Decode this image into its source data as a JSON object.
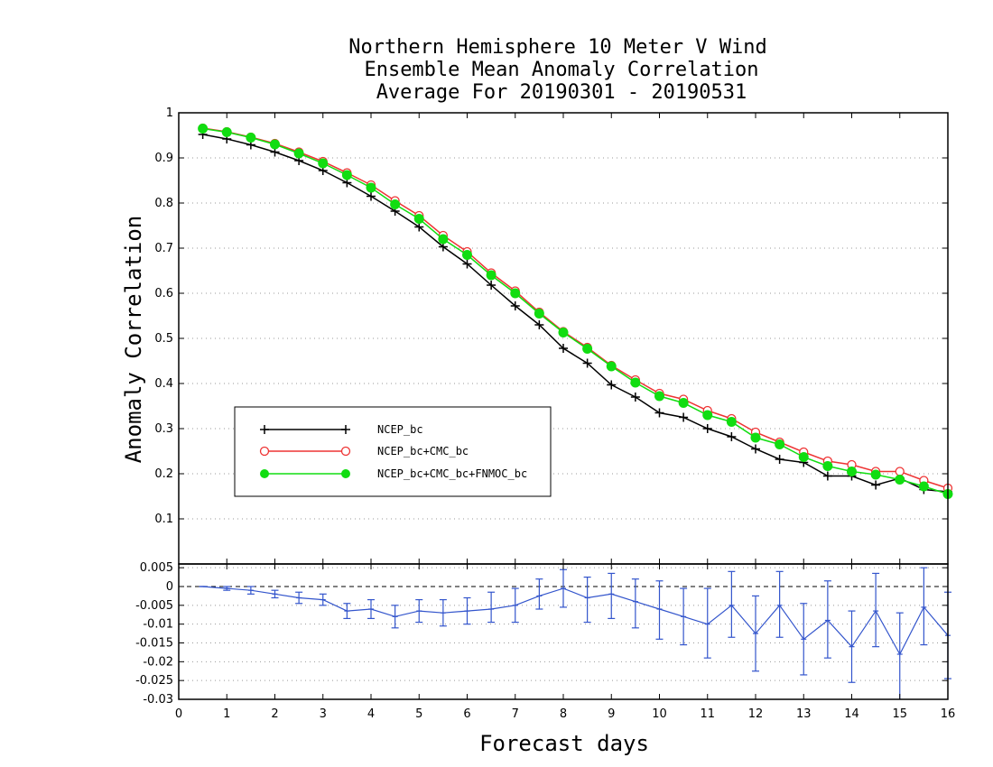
{
  "chart_data": {
    "type": "line",
    "title": {
      "line1": "Northern Hemisphere 10 Meter V Wind",
      "line2": "Ensemble Mean Anomaly Correlation",
      "line3": "Average For 20190301 - 20190531"
    },
    "xlabel": "Forecast days",
    "ylabel": "Anomaly Correlation",
    "xlim": [
      0,
      16
    ],
    "x_ticks": [
      "0",
      "1",
      "2",
      "3",
      "4",
      "5",
      "6",
      "7",
      "8",
      "9",
      "10",
      "11",
      "12",
      "13",
      "14",
      "15",
      "16"
    ],
    "main_panel": {
      "ylim": [
        0,
        1
      ],
      "y_ticks": [
        "0.1",
        "0.2",
        "0.3",
        "0.4",
        "0.5",
        "0.6",
        "0.7",
        "0.8",
        "0.9",
        "1"
      ],
      "grid": "horizontal-dotted",
      "legend_position": "lower-left",
      "x": [
        0.5,
        1,
        1.5,
        2,
        2.5,
        3,
        3.5,
        4,
        4.5,
        5,
        5.5,
        6,
        6.5,
        7,
        7.5,
        8,
        8.5,
        9,
        9.5,
        10,
        10.5,
        11,
        11.5,
        12,
        12.5,
        13,
        13.5,
        14,
        14.5,
        15,
        15.5,
        16
      ],
      "series": [
        {
          "name": "NCEP_bc",
          "color": "#000000",
          "marker": "plus",
          "values": [
            0.952,
            0.942,
            0.929,
            0.913,
            0.894,
            0.872,
            0.845,
            0.815,
            0.782,
            0.747,
            0.703,
            0.665,
            0.618,
            0.572,
            0.53,
            0.478,
            0.445,
            0.397,
            0.37,
            0.335,
            0.325,
            0.3,
            0.282,
            0.255,
            0.232,
            0.225,
            0.195,
            0.195,
            0.175,
            0.19,
            0.165,
            0.16
          ]
        },
        {
          "name": "NCEP_bc+CMC_bc",
          "color": "#ee3333",
          "marker": "open-circle",
          "values": [
            0.966,
            0.958,
            0.946,
            0.932,
            0.913,
            0.892,
            0.867,
            0.84,
            0.805,
            0.772,
            0.728,
            0.692,
            0.645,
            0.605,
            0.558,
            0.515,
            0.48,
            0.44,
            0.408,
            0.378,
            0.365,
            0.34,
            0.322,
            0.292,
            0.27,
            0.248,
            0.228,
            0.22,
            0.205,
            0.205,
            0.185,
            0.168
          ]
        },
        {
          "name": "NCEP_bc+CMC_bc+FNMOC_bc",
          "color": "#11dd11",
          "marker": "filled-circle",
          "values": [
            0.965,
            0.957,
            0.945,
            0.93,
            0.91,
            0.888,
            0.862,
            0.834,
            0.797,
            0.765,
            0.72,
            0.685,
            0.64,
            0.6,
            0.555,
            0.513,
            0.477,
            0.438,
            0.402,
            0.372,
            0.357,
            0.33,
            0.315,
            0.28,
            0.265,
            0.237,
            0.217,
            0.205,
            0.198,
            0.187,
            0.172,
            0.155
          ]
        }
      ]
    },
    "diff_panel": {
      "ylim": [
        -0.03,
        0.006
      ],
      "y_ticks": [
        "0.005",
        "0",
        "-0.005",
        "-0.01",
        "-0.015",
        "-0.02",
        "-0.025",
        "-0.03"
      ],
      "color": "#3355cc",
      "values": [
        0,
        -0.0005,
        -0.001,
        -0.002,
        -0.003,
        -0.0035,
        -0.0065,
        -0.006,
        -0.008,
        -0.0065,
        -0.007,
        -0.0065,
        -0.006,
        -0.005,
        -0.0025,
        -0.0005,
        -0.003,
        -0.002,
        -0.004,
        -0.006,
        -0.008,
        -0.01,
        -0.005,
        -0.0125,
        -0.005,
        -0.014,
        -0.009,
        -0.016,
        -0.0065,
        -0.018,
        -0.0055,
        -0.013
      ],
      "err_low": [
        0,
        -0.001,
        -0.002,
        -0.003,
        -0.0045,
        -0.005,
        -0.0085,
        -0.0085,
        -0.011,
        -0.0095,
        -0.0105,
        -0.01,
        -0.0095,
        -0.0095,
        -0.006,
        -0.0055,
        -0.0095,
        -0.0085,
        -0.011,
        -0.014,
        -0.0155,
        -0.019,
        -0.0135,
        -0.0225,
        -0.0135,
        -0.0235,
        -0.019,
        -0.0255,
        -0.016,
        -0.03,
        -0.0155,
        -0.0245
      ],
      "err_high": [
        0,
        0,
        0,
        -0.001,
        -0.0015,
        -0.002,
        -0.0045,
        -0.0035,
        -0.005,
        -0.0035,
        -0.0035,
        -0.003,
        -0.0015,
        -0.0005,
        0.002,
        0.0045,
        0.0025,
        0.0035,
        0.002,
        0.0015,
        -0.0005,
        -0.0005,
        0.004,
        -0.0025,
        0.004,
        -0.0045,
        0.0015,
        -0.0065,
        0.0035,
        -0.007,
        0.005,
        -0.0015
      ]
    }
  }
}
